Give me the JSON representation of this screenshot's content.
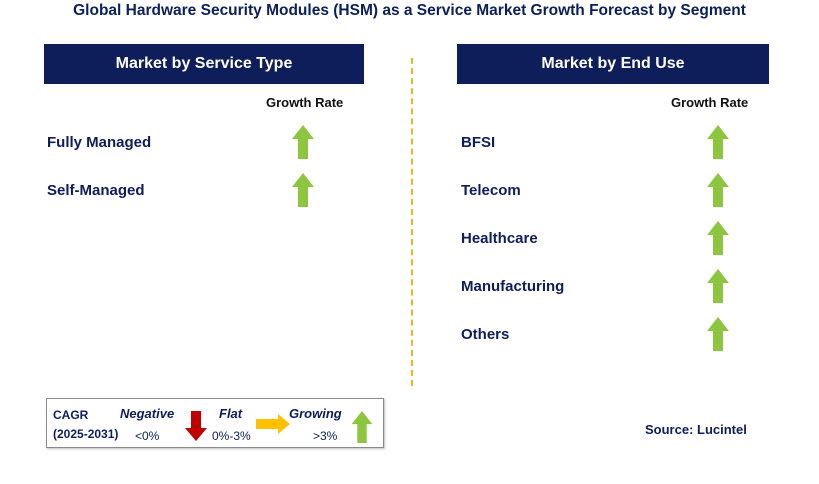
{
  "title": "Global Hardware Security Modules (HSM) as a Service Market Growth Forecast by Segment",
  "left_panel": {
    "header": "Market by Service Type",
    "growth_label": "Growth Rate",
    "rows": [
      {
        "label": "Fully Managed",
        "trend": "growing"
      },
      {
        "label": "Self-Managed",
        "trend": "growing"
      }
    ]
  },
  "right_panel": {
    "header": "Market by End Use",
    "growth_label": "Growth Rate",
    "rows": [
      {
        "label": "BFSI",
        "trend": "growing"
      },
      {
        "label": "Telecom",
        "trend": "growing"
      },
      {
        "label": "Healthcare",
        "trend": "growing"
      },
      {
        "label": "Manufacturing",
        "trend": "growing"
      },
      {
        "label": "Others",
        "trend": "growing"
      }
    ]
  },
  "legend": {
    "cagr_label": "CAGR",
    "period": "(2025-2031)",
    "negative_label": "Negative",
    "negative_value": "<0%",
    "flat_label": "Flat",
    "flat_value": "0%-3%",
    "growing_label": "Growing",
    "growing_value": ">3%"
  },
  "source": "Source: Lucintel",
  "colors": {
    "header_bg": "#0d1e5a",
    "growing": "#8cc63f",
    "negative": "#c00000",
    "flat": "#ffc000",
    "divider": "#f2b41c"
  }
}
